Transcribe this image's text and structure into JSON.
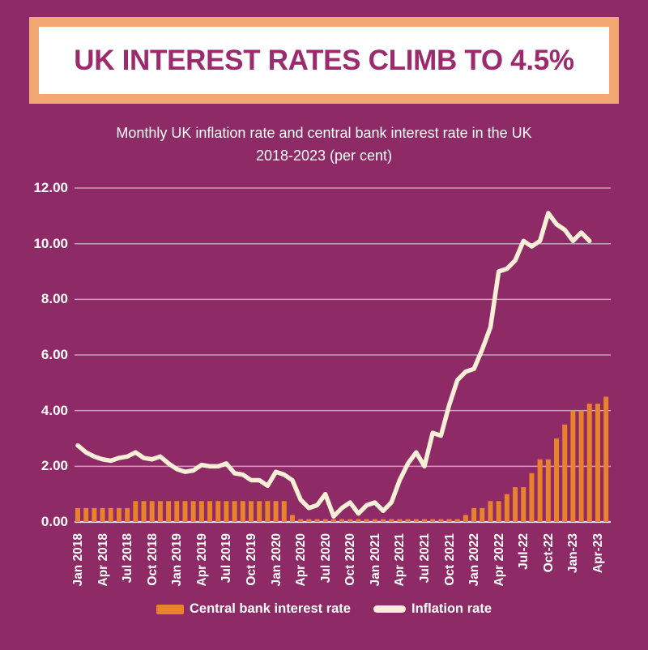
{
  "banner": {
    "title": "UK INTEREST RATES CLIMB TO 4.5%"
  },
  "subtitle": {
    "line1": "Monthly UK inflation rate and central bank interest rate in the UK",
    "line2": "2018-2023 (per cent)"
  },
  "colors": {
    "background": "#8E2A66",
    "banner_border": "#F3A772",
    "banner_background": "#FFFFFF",
    "banner_title_text": "#9C2B6E",
    "subtitle_text": "#FFFFFF",
    "axis_text": "#FFFFFF",
    "bar": "#E8822B",
    "line": "#F7F0D7"
  },
  "chart_data": {
    "type": "combo",
    "title": "Monthly UK inflation rate and central bank interest rate in the UK 2018-2023 (per cent)",
    "x_start_month": "Jan 2018",
    "x_tick_interval_months": 3,
    "x_tick_labels": [
      "Jan 2018",
      "Apr 2018",
      "Jul 2018",
      "Oct 2018",
      "Jan 2019",
      "Apr 2019",
      "Jul 2019",
      "Oct 2019",
      "Jan 2020",
      "Apr 2020",
      "Jul 2020",
      "Oct 2020",
      "Jan 2021",
      "Apr 2021",
      "Jul 2021",
      "Oct 2021",
      "Jan 2022",
      "Apr 2022",
      "Jul-22",
      "Oct-22",
      "Jan-23",
      "Apr-23"
    ],
    "ylim": [
      0,
      12
    ],
    "y_tick_labels": [
      "12.00",
      "10.00",
      "8.00",
      "6.00",
      "4.00",
      "2.00",
      "0.00"
    ],
    "grid": true,
    "legend_position": "bottom",
    "series": [
      {
        "name": "Central bank interest rate",
        "type": "bar",
        "color": "#E8822B",
        "values": [
          0.5,
          0.5,
          0.5,
          0.5,
          0.5,
          0.5,
          0.5,
          0.75,
          0.75,
          0.75,
          0.75,
          0.75,
          0.75,
          0.75,
          0.75,
          0.75,
          0.75,
          0.75,
          0.75,
          0.75,
          0.75,
          0.75,
          0.75,
          0.75,
          0.75,
          0.75,
          0.25,
          0.1,
          0.1,
          0.1,
          0.1,
          0.1,
          0.1,
          0.1,
          0.1,
          0.1,
          0.1,
          0.1,
          0.1,
          0.1,
          0.1,
          0.1,
          0.1,
          0.1,
          0.1,
          0.1,
          0.1,
          0.25,
          0.5,
          0.5,
          0.75,
          0.75,
          1.0,
          1.25,
          1.25,
          1.75,
          2.25,
          2.25,
          3.0,
          3.5,
          4.0,
          4.0,
          4.25,
          4.25,
          4.5
        ]
      },
      {
        "name": "Inflation rate",
        "type": "line",
        "color": "#F7F0D7",
        "values": [
          2.75,
          2.5,
          2.35,
          2.25,
          2.2,
          2.3,
          2.35,
          2.5,
          2.3,
          2.25,
          2.35,
          2.1,
          1.9,
          1.8,
          1.85,
          2.05,
          2.0,
          2.0,
          2.1,
          1.75,
          1.7,
          1.5,
          1.5,
          1.3,
          1.8,
          1.7,
          1.5,
          0.8,
          0.5,
          0.6,
          1.0,
          0.2,
          0.5,
          0.7,
          0.3,
          0.6,
          0.7,
          0.4,
          0.7,
          1.5,
          2.1,
          2.5,
          2.0,
          3.2,
          3.1,
          4.2,
          5.1,
          5.4,
          5.5,
          6.2,
          7.0,
          9.0,
          9.1,
          9.4,
          10.1,
          9.9,
          10.1,
          11.1,
          10.7,
          10.5,
          10.1,
          10.4,
          10.1
        ]
      }
    ]
  }
}
